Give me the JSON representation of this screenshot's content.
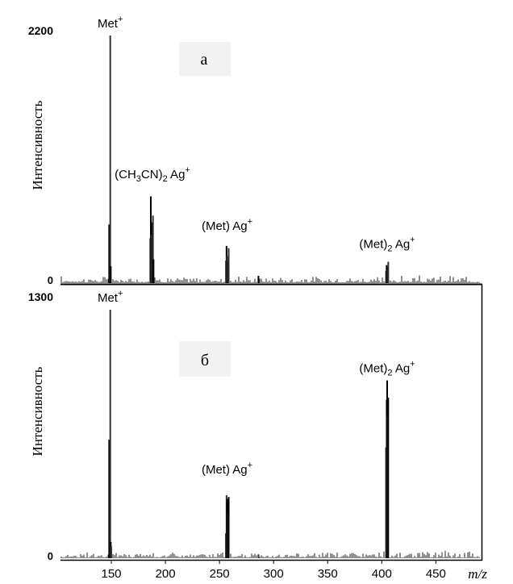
{
  "chart_data": [
    {
      "type": "bar",
      "panel_label": "а",
      "ylabel": "Интенсивность",
      "y_tick_labels": [
        "0",
        "2200"
      ],
      "ylim": [
        0,
        2200
      ],
      "xlim": [
        103,
        493
      ],
      "grid": false,
      "series": [
        {
          "x": [
            148,
            149,
            149.5,
            186,
            186.5,
            187,
            188,
            188.5,
            189,
            256,
            256.5,
            257,
            258,
            258.5,
            286,
            404,
            404.5,
            405,
            405.5,
            406
          ],
          "values": [
            520,
            2200,
            150,
            400,
            770,
            430,
            540,
            600,
            210,
            200,
            330,
            240,
            200,
            310,
            65,
            110,
            160,
            120,
            145,
            190
          ]
        }
      ],
      "peak_labels": [
        {
          "x": 149,
          "y": 2200,
          "text": "Met",
          "sup": "+"
        },
        {
          "x": 188,
          "y": 860,
          "text": "(CH",
          "sub1": "3",
          "mid": "CN)",
          "sub2": "2",
          "tail": " Ag",
          "sup": "+"
        },
        {
          "x": 257,
          "y": 400,
          "text": "(Met) Ag",
          "sup": "+"
        },
        {
          "x": 405,
          "y": 240,
          "text": "(Met)",
          "sub": "2",
          "tail": " Ag",
          "sup": "+"
        }
      ]
    },
    {
      "type": "bar",
      "panel_label": "б",
      "ylabel": "Интенсивность",
      "y_tick_labels": [
        "0",
        "1300"
      ],
      "ylim": [
        0,
        1300
      ],
      "xlim": [
        103,
        493
      ],
      "xlabel": "m/z",
      "x_tick_labels": [
        "150",
        "200",
        "250",
        "300",
        "350",
        "400",
        "450"
      ],
      "x_ticks": [
        150,
        200,
        250,
        300,
        350,
        400,
        450
      ],
      "grid": false,
      "series": [
        {
          "x": [
            148,
            149,
            149.5,
            150,
            256,
            256.5,
            257,
            258,
            258.5,
            286,
            404,
            404.5,
            405,
            405.5,
            406
          ],
          "values": [
            620,
            1300,
            85,
            60,
            130,
            330,
            310,
            230,
            320,
            20,
            580,
            830,
            930,
            750,
            840
          ]
        }
      ],
      "peak_labels": [
        {
          "x": 149,
          "y": 1300,
          "text": "Met",
          "sup": "+"
        },
        {
          "x": 257,
          "y": 400,
          "text": "(Met) Ag",
          "sup": "+"
        },
        {
          "x": 405,
          "y": 930,
          "text": "(Met)",
          "sub": "2",
          "tail": " Ag",
          "sup": "+"
        }
      ]
    }
  ]
}
